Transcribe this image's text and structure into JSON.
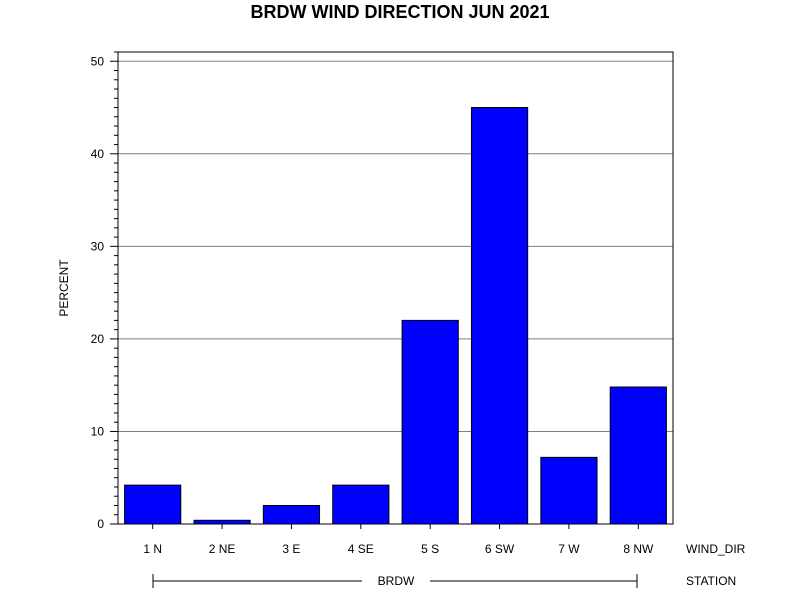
{
  "chart_data": {
    "type": "bar",
    "title": "BRDW WIND DIRECTION JUN 2021",
    "ylabel": "PERCENT",
    "xlabel": "WIND_DIR",
    "group_label": "STATION",
    "group_name": "BRDW",
    "categories": [
      "1 N",
      "2 NE",
      "3 E",
      "4 SE",
      "5 S",
      "6 SW",
      "7 W",
      "8 NW"
    ],
    "values": [
      4.2,
      0.4,
      2.0,
      4.2,
      22.0,
      45.0,
      7.2,
      14.8
    ],
    "ylim": [
      0,
      51
    ],
    "yticks": [
      0,
      10,
      20,
      30,
      40,
      50
    ],
    "grid": true,
    "bar_color": "#0000ff",
    "legend": "none"
  }
}
